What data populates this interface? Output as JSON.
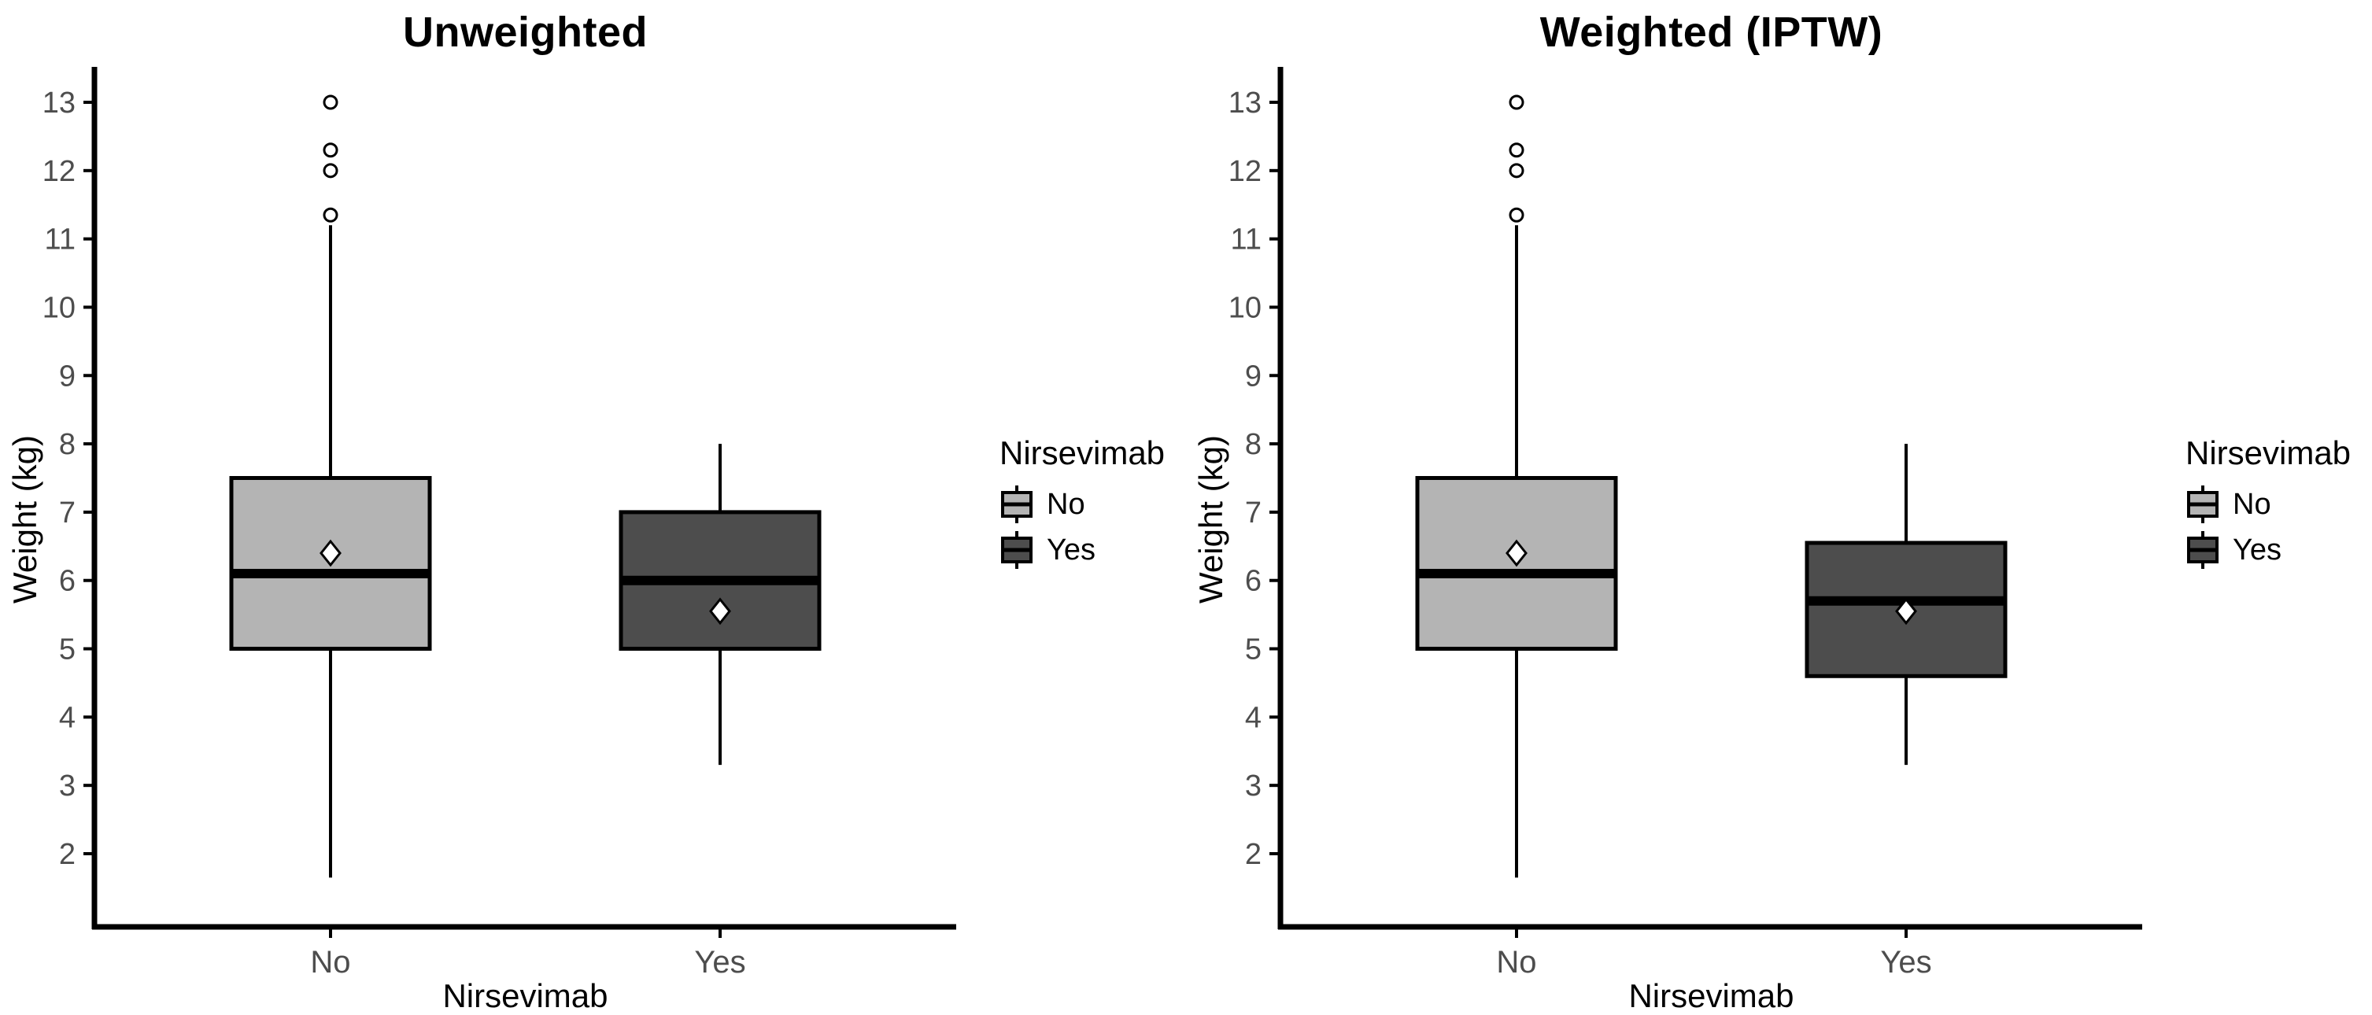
{
  "chart_data": [
    {
      "type": "boxplot",
      "title": "Unweighted",
      "xlabel": "Nirsevimab",
      "ylabel": "Weight (kg)",
      "ylim": [
        1.1,
        13.6
      ],
      "yticks": [
        2,
        3,
        4,
        5,
        6,
        7,
        8,
        9,
        10,
        11,
        12,
        13
      ],
      "categories": [
        "No",
        "Yes"
      ],
      "grid": "off",
      "legend": {
        "title": "Nirsevimab",
        "position": "right",
        "entries": [
          {
            "label": "No",
            "color": "#b4b4b4"
          },
          {
            "label": "Yes",
            "color": "#4d4d4d"
          }
        ]
      },
      "series": [
        {
          "category": "No",
          "fill": "#b4b4b4",
          "whisker_low": 1.65,
          "q1": 5.0,
          "median": 6.1,
          "q3": 7.5,
          "whisker_high": 11.2,
          "mean": 6.4,
          "outliers": [
            11.35,
            12.0,
            12.3,
            13.0
          ]
        },
        {
          "category": "Yes",
          "fill": "#4d4d4d",
          "whisker_low": 3.3,
          "q1": 5.0,
          "median": 6.0,
          "q3": 7.0,
          "whisker_high": 8.0,
          "mean": 5.55,
          "outliers": []
        }
      ]
    },
    {
      "type": "boxplot",
      "title": "Weighted (IPTW)",
      "xlabel": "Nirsevimab",
      "ylabel": "Weight (kg)",
      "ylim": [
        1.1,
        13.6
      ],
      "yticks": [
        2,
        3,
        4,
        5,
        6,
        7,
        8,
        9,
        10,
        11,
        12,
        13
      ],
      "categories": [
        "No",
        "Yes"
      ],
      "grid": "off",
      "legend": {
        "title": "Nirsevimab",
        "position": "right",
        "entries": [
          {
            "label": "No",
            "color": "#b4b4b4"
          },
          {
            "label": "Yes",
            "color": "#4d4d4d"
          }
        ]
      },
      "series": [
        {
          "category": "No",
          "fill": "#b4b4b4",
          "whisker_low": 1.65,
          "q1": 5.0,
          "median": 6.1,
          "q3": 7.5,
          "whisker_high": 11.2,
          "mean": 6.4,
          "outliers": [
            11.35,
            12.0,
            12.3,
            13.0
          ]
        },
        {
          "category": "Yes",
          "fill": "#4d4d4d",
          "whisker_low": 3.3,
          "q1": 4.6,
          "median": 5.7,
          "q3": 6.55,
          "whisker_high": 8.0,
          "mean": 5.55,
          "outliers": []
        }
      ]
    }
  ],
  "styles": {
    "background": "#ffffff",
    "axis_line_color": "#000000",
    "axis_text_color": "#4d4d4d",
    "axis_title_color": "#000000",
    "box_border_color": "#000000",
    "mean_marker_fill": "#ffffff",
    "outlier_fill": "#ffffff",
    "fill_no": "#b4b4b4",
    "fill_yes": "#4d4d4d"
  }
}
